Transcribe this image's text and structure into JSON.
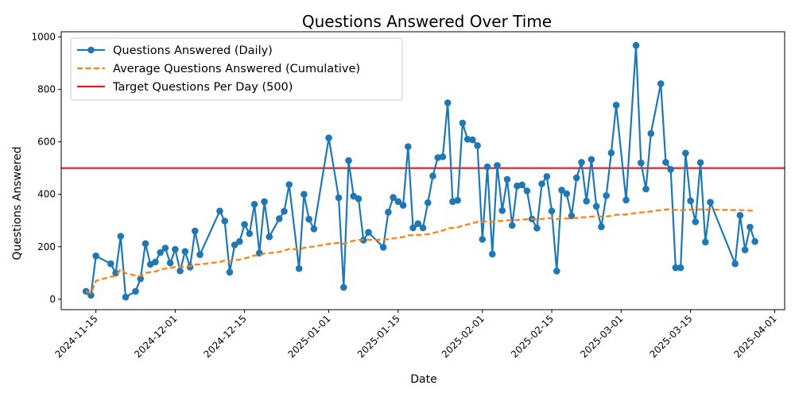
{
  "chart_data": {
    "type": "line",
    "title": "Questions Answered Over Time",
    "xlabel": "Date",
    "ylabel": "Questions Answered",
    "x_ticks": [
      "2024-11-15",
      "2024-12-01",
      "2024-12-15",
      "2025-01-01",
      "2025-01-15",
      "2025-02-01",
      "2025-02-15",
      "2025-03-01",
      "2025-03-15",
      "2025-04-01"
    ],
    "y_ticks": [
      0,
      200,
      400,
      600,
      800,
      1000
    ],
    "ylim": [
      -40,
      1020
    ],
    "xlim": [
      "2024-11-08",
      "2025-04-03"
    ],
    "grid": false,
    "legend_position": "top-left",
    "target": {
      "name": "Target Questions Per Day (500)",
      "value": 500,
      "color": "#e41a1c"
    },
    "series": [
      {
        "name": "Questions Answered (Daily)",
        "style": "line-markers",
        "color": "#1f77b4",
        "points": [
          [
            "2024-11-13",
            30
          ],
          [
            "2024-11-14",
            15
          ],
          [
            "2024-11-15",
            165
          ],
          [
            "2024-11-18",
            135
          ],
          [
            "2024-11-19",
            100
          ],
          [
            "2024-11-20",
            240
          ],
          [
            "2024-11-21",
            8
          ],
          [
            "2024-11-23",
            30
          ],
          [
            "2024-11-24",
            78
          ],
          [
            "2024-11-25",
            212
          ],
          [
            "2024-11-26",
            133
          ],
          [
            "2024-11-27",
            142
          ],
          [
            "2024-11-28",
            178
          ],
          [
            "2024-11-29",
            195
          ],
          [
            "2024-11-30",
            138
          ],
          [
            "2024-12-01",
            190
          ],
          [
            "2024-12-02",
            108
          ],
          [
            "2024-12-03",
            182
          ],
          [
            "2024-12-04",
            122
          ],
          [
            "2024-12-05",
            260
          ],
          [
            "2024-12-06",
            170
          ],
          [
            "2024-12-10",
            336
          ],
          [
            "2024-12-11",
            298
          ],
          [
            "2024-12-12",
            103
          ],
          [
            "2024-12-13",
            207
          ],
          [
            "2024-12-14",
            220
          ],
          [
            "2024-12-15",
            285
          ],
          [
            "2024-12-16",
            250
          ],
          [
            "2024-12-17",
            362
          ],
          [
            "2024-12-18",
            176
          ],
          [
            "2024-12-19",
            372
          ],
          [
            "2024-12-20",
            238
          ],
          [
            "2024-12-22",
            307
          ],
          [
            "2024-12-23",
            335
          ],
          [
            "2024-12-24",
            437
          ],
          [
            "2024-12-26",
            117
          ],
          [
            "2024-12-27",
            400
          ],
          [
            "2024-12-28",
            305
          ],
          [
            "2024-12-29",
            268
          ],
          [
            "2025-01-01",
            615
          ],
          [
            "2025-01-03",
            387
          ],
          [
            "2025-01-04",
            45
          ],
          [
            "2025-01-05",
            529
          ],
          [
            "2025-01-06",
            393
          ],
          [
            "2025-01-07",
            383
          ],
          [
            "2025-01-08",
            225
          ],
          [
            "2025-01-09",
            255
          ],
          [
            "2025-01-12",
            198
          ],
          [
            "2025-01-13",
            332
          ],
          [
            "2025-01-14",
            388
          ],
          [
            "2025-01-15",
            372
          ],
          [
            "2025-01-16",
            358
          ],
          [
            "2025-01-17",
            582
          ],
          [
            "2025-01-18",
            272
          ],
          [
            "2025-01-19",
            288
          ],
          [
            "2025-01-20",
            272
          ],
          [
            "2025-01-21",
            368
          ],
          [
            "2025-01-22",
            470
          ],
          [
            "2025-01-23",
            540
          ],
          [
            "2025-01-24",
            543
          ],
          [
            "2025-01-25",
            749
          ],
          [
            "2025-01-26",
            372
          ],
          [
            "2025-01-27",
            377
          ],
          [
            "2025-01-28",
            672
          ],
          [
            "2025-01-29",
            610
          ],
          [
            "2025-01-30",
            608
          ],
          [
            "2025-01-31",
            586
          ],
          [
            "2025-02-01",
            228
          ],
          [
            "2025-02-02",
            505
          ],
          [
            "2025-02-03",
            172
          ],
          [
            "2025-02-04",
            510
          ],
          [
            "2025-02-05",
            338
          ],
          [
            "2025-02-06",
            457
          ],
          [
            "2025-02-07",
            281
          ],
          [
            "2025-02-08",
            432
          ],
          [
            "2025-02-09",
            436
          ],
          [
            "2025-02-10",
            413
          ],
          [
            "2025-02-11",
            306
          ],
          [
            "2025-02-12",
            271
          ],
          [
            "2025-02-13",
            440
          ],
          [
            "2025-02-14",
            468
          ],
          [
            "2025-02-15",
            336
          ],
          [
            "2025-02-16",
            107
          ],
          [
            "2025-02-17",
            416
          ],
          [
            "2025-02-18",
            402
          ],
          [
            "2025-02-19",
            318
          ],
          [
            "2025-02-20",
            463
          ],
          [
            "2025-02-21",
            522
          ],
          [
            "2025-02-22",
            374
          ],
          [
            "2025-02-23",
            533
          ],
          [
            "2025-02-24",
            354
          ],
          [
            "2025-02-25",
            276
          ],
          [
            "2025-02-26",
            395
          ],
          [
            "2025-02-27",
            558
          ],
          [
            "2025-02-28",
            740
          ],
          [
            "2025-03-02",
            378
          ],
          [
            "2025-03-04",
            968
          ],
          [
            "2025-03-05",
            520
          ],
          [
            "2025-03-06",
            420
          ],
          [
            "2025-03-07",
            632
          ],
          [
            "2025-03-09",
            822
          ],
          [
            "2025-03-10",
            522
          ],
          [
            "2025-03-11",
            495
          ],
          [
            "2025-03-12",
            120
          ],
          [
            "2025-03-13",
            120
          ],
          [
            "2025-03-14",
            557
          ],
          [
            "2025-03-15",
            375
          ],
          [
            "2025-03-16",
            295
          ],
          [
            "2025-03-17",
            521
          ],
          [
            "2025-03-18",
            218
          ],
          [
            "2025-03-19",
            370
          ],
          [
            "2025-03-24",
            135
          ],
          [
            "2025-03-25",
            320
          ],
          [
            "2025-03-26",
            188
          ],
          [
            "2025-03-27",
            275
          ],
          [
            "2025-03-28",
            220
          ]
        ]
      },
      {
        "name": "Average Questions Answered (Cumulative)",
        "style": "dashed",
        "color": "#ff7f0e",
        "points": [
          [
            "2024-11-13",
            30
          ],
          [
            "2024-11-14",
            22
          ],
          [
            "2024-11-15",
            70
          ],
          [
            "2024-11-18",
            86
          ],
          [
            "2024-11-19",
            89
          ],
          [
            "2024-11-20",
            114
          ],
          [
            "2024-11-21",
            99
          ],
          [
            "2024-11-23",
            90
          ],
          [
            "2024-11-24",
            88
          ],
          [
            "2024-11-25",
            100
          ],
          [
            "2024-11-26",
            103
          ],
          [
            "2024-11-27",
            106
          ],
          [
            "2024-11-28",
            112
          ],
          [
            "2024-11-29",
            117
          ],
          [
            "2024-11-30",
            119
          ],
          [
            "2024-12-01",
            123
          ],
          [
            "2024-12-02",
            122
          ],
          [
            "2024-12-03",
            125
          ],
          [
            "2024-12-04",
            125
          ],
          [
            "2024-12-05",
            132
          ],
          [
            "2024-12-06",
            133
          ],
          [
            "2024-12-10",
            142
          ],
          [
            "2024-12-11",
            148
          ],
          [
            "2024-12-12",
            146
          ],
          [
            "2024-12-13",
            148
          ],
          [
            "2024-12-14",
            151
          ],
          [
            "2024-12-15",
            156
          ],
          [
            "2024-12-16",
            160
          ],
          [
            "2024-12-17",
            167
          ],
          [
            "2024-12-18",
            167
          ],
          [
            "2024-12-19",
            174
          ],
          [
            "2024-12-20",
            176
          ],
          [
            "2024-12-22",
            180
          ],
          [
            "2024-12-23",
            185
          ],
          [
            "2024-12-24",
            192
          ],
          [
            "2024-12-26",
            190
          ],
          [
            "2024-12-27",
            196
          ],
          [
            "2024-12-28",
            199
          ],
          [
            "2024-12-29",
            201
          ],
          [
            "2025-01-01",
            211
          ],
          [
            "2025-01-03",
            215
          ],
          [
            "2025-01-04",
            211
          ],
          [
            "2025-01-05",
            218
          ],
          [
            "2025-01-06",
            223
          ],
          [
            "2025-01-07",
            226
          ],
          [
            "2025-01-08",
            226
          ],
          [
            "2025-01-09",
            227
          ],
          [
            "2025-01-12",
            227
          ],
          [
            "2025-01-13",
            229
          ],
          [
            "2025-01-14",
            232
          ],
          [
            "2025-01-15",
            235
          ],
          [
            "2025-01-16",
            237
          ],
          [
            "2025-01-17",
            244
          ],
          [
            "2025-01-18",
            244
          ],
          [
            "2025-01-19",
            245
          ],
          [
            "2025-01-20",
            246
          ],
          [
            "2025-01-21",
            248
          ],
          [
            "2025-01-22",
            252
          ],
          [
            "2025-01-23",
            257
          ],
          [
            "2025-01-24",
            262
          ],
          [
            "2025-01-25",
            270
          ],
          [
            "2025-01-26",
            272
          ],
          [
            "2025-01-27",
            274
          ],
          [
            "2025-01-28",
            280
          ],
          [
            "2025-01-29",
            285
          ],
          [
            "2025-01-30",
            290
          ],
          [
            "2025-01-31",
            295
          ],
          [
            "2025-02-01",
            294
          ],
          [
            "2025-02-02",
            297
          ],
          [
            "2025-02-03",
            295
          ],
          [
            "2025-02-04",
            298
          ],
          [
            "2025-02-05",
            299
          ],
          [
            "2025-02-06",
            301
          ],
          [
            "2025-02-07",
            300
          ],
          [
            "2025-02-08",
            302
          ],
          [
            "2025-02-09",
            304
          ],
          [
            "2025-02-10",
            305
          ],
          [
            "2025-02-11",
            305
          ],
          [
            "2025-02-12",
            305
          ],
          [
            "2025-02-13",
            306
          ],
          [
            "2025-02-14",
            308
          ],
          [
            "2025-02-15",
            309
          ],
          [
            "2025-02-16",
            306
          ],
          [
            "2025-02-17",
            307
          ],
          [
            "2025-02-18",
            308
          ],
          [
            "2025-02-19",
            308
          ],
          [
            "2025-02-20",
            310
          ],
          [
            "2025-02-21",
            312
          ],
          [
            "2025-02-22",
            313
          ],
          [
            "2025-02-23",
            315
          ],
          [
            "2025-02-24",
            316
          ],
          [
            "2025-02-25",
            315
          ],
          [
            "2025-02-26",
            316
          ],
          [
            "2025-02-27",
            318
          ],
          [
            "2025-02-28",
            322
          ],
          [
            "2025-03-02",
            323
          ],
          [
            "2025-03-04",
            329
          ],
          [
            "2025-03-05",
            331
          ],
          [
            "2025-03-06",
            332
          ],
          [
            "2025-03-07",
            335
          ],
          [
            "2025-03-09",
            340
          ],
          [
            "2025-03-10",
            342
          ],
          [
            "2025-03-11",
            343
          ],
          [
            "2025-03-12",
            341
          ],
          [
            "2025-03-13",
            339
          ],
          [
            "2025-03-14",
            341
          ],
          [
            "2025-03-15",
            342
          ],
          [
            "2025-03-16",
            341
          ],
          [
            "2025-03-17",
            343
          ],
          [
            "2025-03-18",
            342
          ],
          [
            "2025-03-19",
            342
          ],
          [
            "2025-03-24",
            340
          ],
          [
            "2025-03-25",
            340
          ],
          [
            "2025-03-26",
            339
          ],
          [
            "2025-03-27",
            338
          ],
          [
            "2025-03-28",
            337
          ]
        ]
      }
    ]
  }
}
